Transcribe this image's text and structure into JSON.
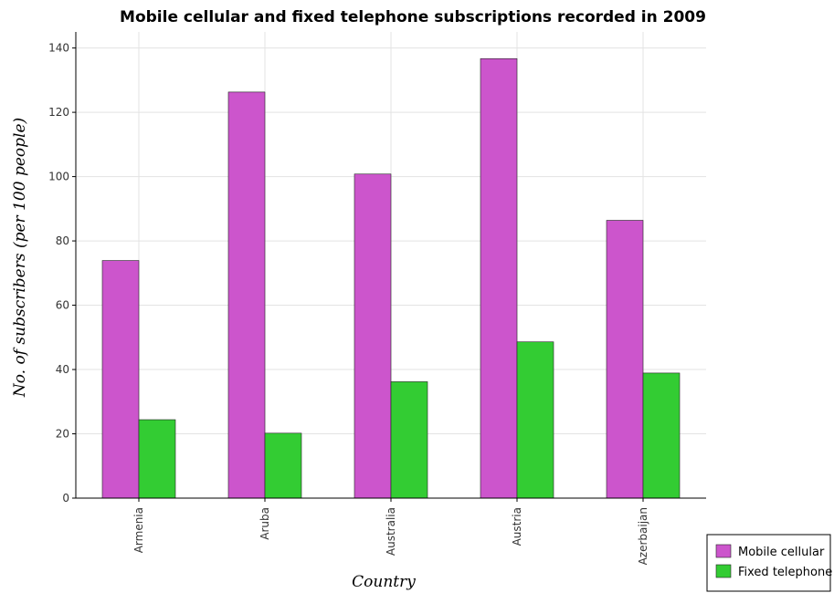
{
  "chart_data": {
    "type": "bar",
    "title": "Mobile cellular and fixed telephone subscriptions recorded in 2009",
    "xlabel": "Country",
    "ylabel": "No. of subscribers (per 100 people)",
    "categories": [
      "Armenia",
      "Aruba",
      "Australia",
      "Austria",
      "Azerbaijan"
    ],
    "series": [
      {
        "name": "Mobile cellular",
        "color": "#cc55cc",
        "values": [
          73.9,
          126.3,
          100.8,
          136.7,
          86.4
        ]
      },
      {
        "name": "Fixed telephone",
        "color": "#33cc33",
        "values": [
          24.4,
          20.2,
          36.2,
          48.6,
          38.9
        ]
      }
    ],
    "ylim": [
      0,
      145
    ],
    "yticks": [
      0,
      20,
      40,
      60,
      80,
      100,
      120,
      140
    ],
    "grid": true,
    "legend_position": "bottom-right"
  }
}
